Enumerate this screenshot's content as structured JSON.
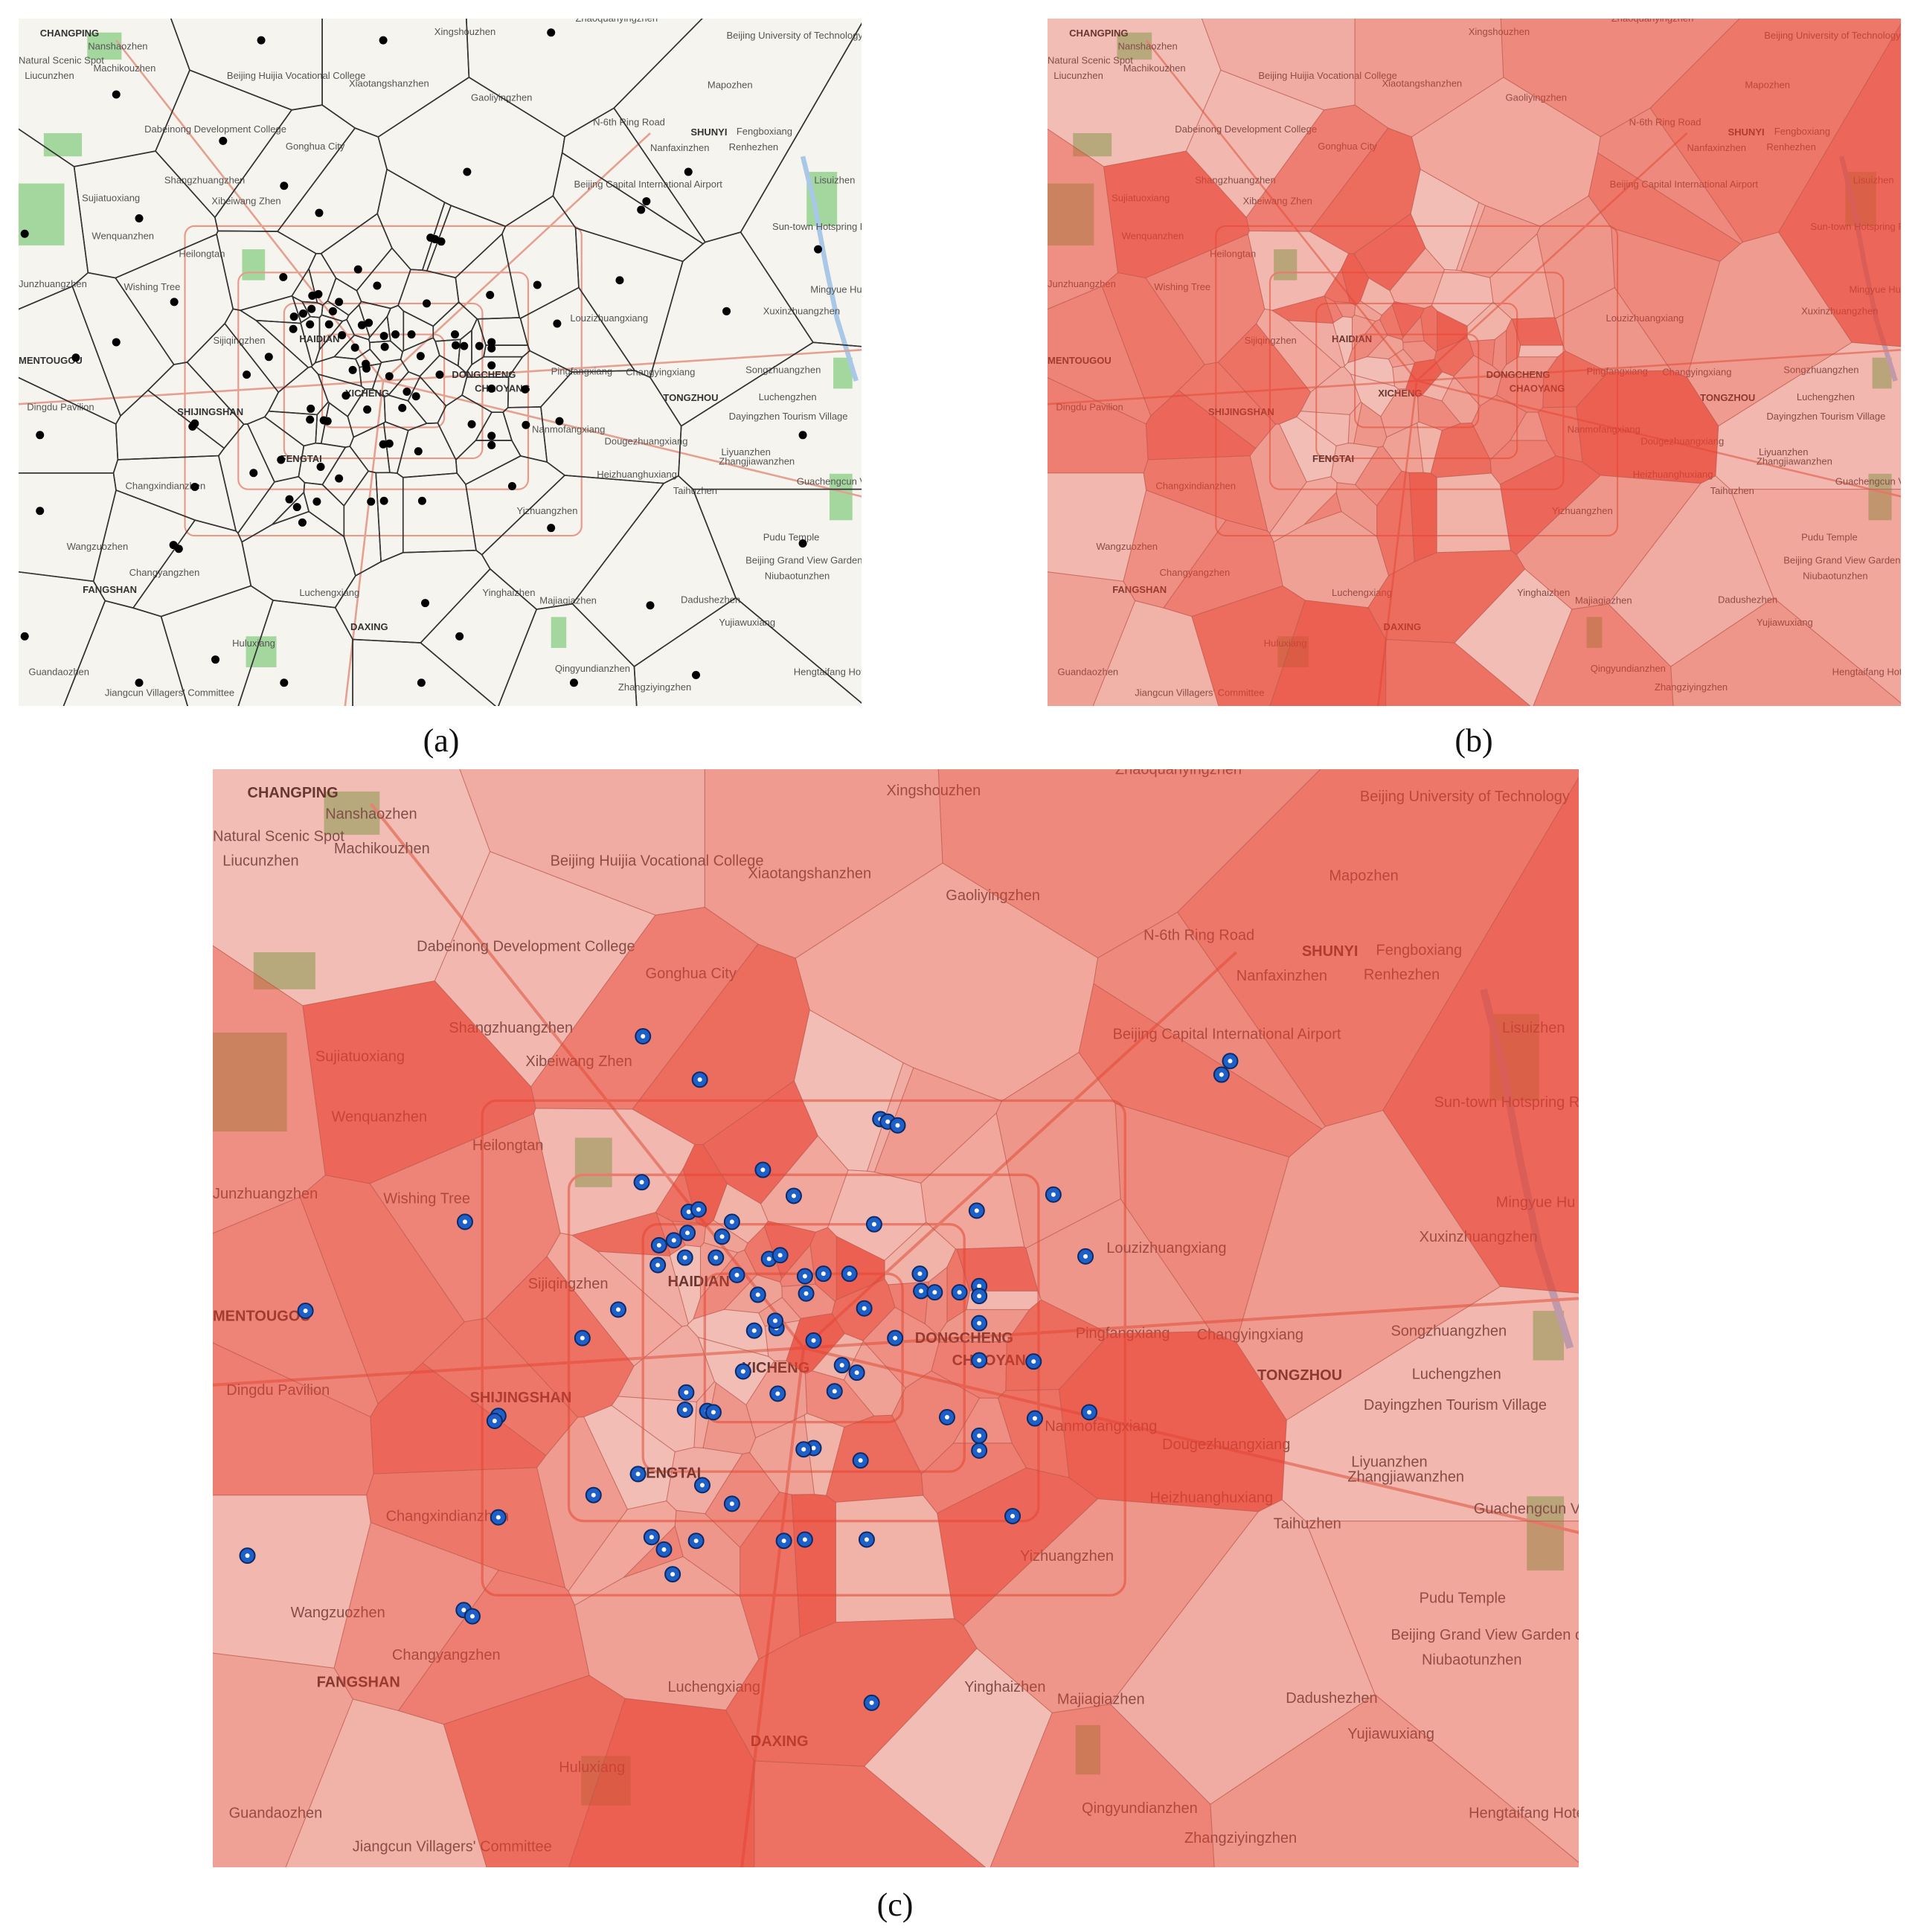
{
  "panels": [
    {
      "label": "(a)"
    },
    {
      "label": "(b)"
    },
    {
      "label": "(c)"
    }
  ],
  "map_labels": [
    "CHANGPING",
    "Nanshaozhen",
    "Xingshouzhen",
    "Zhaoquanyingzhen",
    "Beijing University of Technology",
    "Natural Scenic Spot",
    "Machikouzhen",
    "Liucunzhen",
    "Beijing Huijia Vocational College",
    "Xiaotangshanzhen",
    "Gaoliyingzhen",
    "Mapozhen",
    "Dabeinong Development College",
    "N-6th Ring Road",
    "SHUNYI",
    "Fengboxiang",
    "Gonghua City",
    "Renhezhen",
    "Nanfaxinzhen",
    "Shangzhuangzhen",
    "Sujiatuoxiang",
    "Beijing Capital International Airport",
    "Xibeiwang Zhen",
    "Lisuizhen",
    "Wenquanzhen",
    "Heilongtan",
    "Junzhuangzhen",
    "Sun-town Hotspring Resort",
    "Wishing Tree",
    "Mingyue Hu",
    "HAIDIAN",
    "Louzizhuangxiang",
    "Xuxinzhuangzhen",
    "Sijiqingzhen",
    "MENTOUGOU",
    "Pingfangxiang",
    "Changyingxiang",
    "Songzhuangzhen",
    "DONGCHENG",
    "XICHENG",
    "TONGZHOU",
    "Luchengzhen",
    "SHIJINGSHAN",
    "Dingdu Pavilion",
    "Nanmofangxiang",
    "Dayingzhen Tourism Village",
    "Dougezhuangxiang",
    "FENGTAI",
    "Liyuanzhen",
    "Zhangjiawanzhen",
    "Changxindianzhen",
    "Heizhuanghuxiang",
    "Taihuzhen",
    "Guachengcun Village",
    "Wangzuozhen",
    "Yizhuangzhen",
    "Pudu Temple",
    "Changyangzhen",
    "Yinghaizhen",
    "Niubaotunzhen",
    "FANGSHAN",
    "Luchengxiang",
    "Majiagiazhen",
    "Dadushezhen",
    "DAXING",
    "Yujiawuxiang",
    "Huluxiang",
    "Qingyundianzhen",
    "Zhangziyingzhen",
    "Guandaozhen",
    "Hengtaifang Hotel",
    "Jiangcun Villagers' Committee",
    "CHAOYANG",
    "Beijing Grand View Garden of Grape"
  ]
}
